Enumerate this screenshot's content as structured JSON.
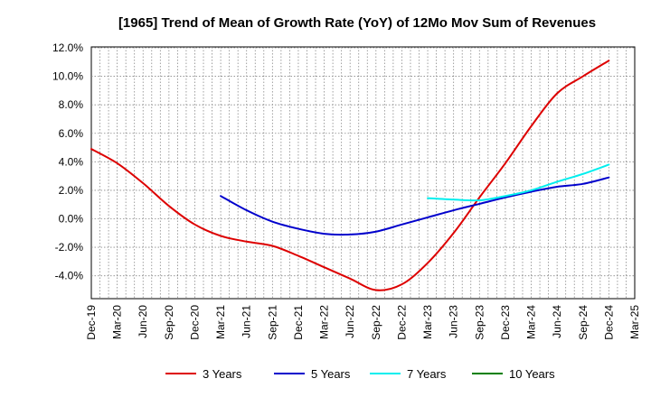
{
  "chart_data": {
    "type": "line",
    "title": "[1965]  Trend of Mean of Growth Rate (YoY) of 12Mo Mov Sum of Revenues",
    "xlabel": "",
    "ylabel": "",
    "ylim": [
      -5.5,
      12.0
    ],
    "y_ticks": [
      12.0,
      10.0,
      8.0,
      6.0,
      4.0,
      2.0,
      0.0,
      -2.0,
      -4.0
    ],
    "y_tick_labels": [
      "12.0%",
      "10.0%",
      "8.0%",
      "6.0%",
      "4.0%",
      "2.0%",
      "0.0%",
      "-2.0%",
      "-4.0%"
    ],
    "x_tick_labels": [
      "Dec-19",
      "Mar-20",
      "Jun-20",
      "Sep-20",
      "Dec-20",
      "Mar-21",
      "Jun-21",
      "Sep-21",
      "Dec-21",
      "Mar-22",
      "Jun-22",
      "Sep-22",
      "Dec-22",
      "Mar-23",
      "Jun-23",
      "Sep-23",
      "Dec-23",
      "Mar-24",
      "Jun-24",
      "Sep-24",
      "Dec-24",
      "Mar-25"
    ],
    "grid": true,
    "legend_position": "bottom",
    "series": [
      {
        "name": "3 Years",
        "color": "#dd0000",
        "values": [
          4.9,
          3.9,
          2.5,
          0.9,
          -0.4,
          -1.2,
          -1.6,
          -1.9,
          -2.6,
          -3.4,
          -4.2,
          -5.0,
          -4.6,
          -3.1,
          -1.0,
          1.5,
          3.9,
          6.5,
          8.8,
          10.0,
          11.1
        ]
      },
      {
        "name": "5 Years",
        "color": "#0000cc",
        "values": [
          null,
          null,
          null,
          null,
          null,
          1.6,
          0.6,
          -0.2,
          -0.7,
          -1.05,
          -1.1,
          -0.9,
          -0.4,
          0.1,
          0.6,
          1.05,
          1.5,
          1.9,
          2.25,
          2.45,
          2.9
        ]
      },
      {
        "name": "7 Years",
        "color": "#00eeee",
        "values": [
          null,
          null,
          null,
          null,
          null,
          null,
          null,
          null,
          null,
          null,
          null,
          null,
          null,
          1.45,
          1.35,
          1.3,
          1.6,
          2.0,
          2.6,
          3.15,
          3.8
        ]
      },
      {
        "name": "10 Years",
        "color": "#008000",
        "values": [
          null,
          null,
          null,
          null,
          null,
          null,
          null,
          null,
          null,
          null,
          null,
          null,
          null,
          null,
          null,
          null,
          null,
          null,
          null,
          null,
          null
        ]
      }
    ]
  }
}
